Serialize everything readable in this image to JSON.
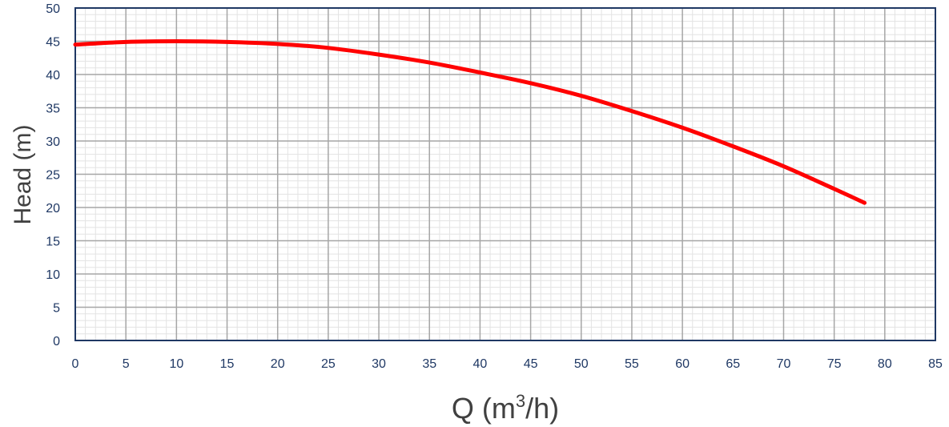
{
  "colors": {
    "curve": "#ff0000",
    "plot_border": "#1f3864",
    "tick_text": "#1f3864",
    "major_grid": "#a6a6a6",
    "minor_grid": "#e3e3e3"
  },
  "chart_data": {
    "type": "line",
    "title": "",
    "xlabel": "Q (m",
    "xlabel_sup": "3",
    "xlabel_end": "/h)",
    "ylabel": "Head (m)",
    "xlim": [
      0,
      85
    ],
    "ylim": [
      0,
      50
    ],
    "x_ticks": [
      "0",
      "5",
      "10",
      "15",
      "20",
      "25",
      "30",
      "35",
      "40",
      "45",
      "50",
      "55",
      "60",
      "65",
      "70",
      "75",
      "80",
      "85"
    ],
    "y_ticks": [
      "0",
      "5",
      "10",
      "15",
      "20",
      "25",
      "30",
      "35",
      "40",
      "45",
      "50"
    ],
    "grid": true,
    "minor_grid": true,
    "legend": "none",
    "series": [
      {
        "x": [
          0,
          5,
          10,
          15,
          20,
          25,
          30,
          35,
          40,
          45,
          50,
          55,
          60,
          65,
          70,
          75,
          78
        ],
        "y": [
          44.5,
          44.9,
          45.0,
          44.9,
          44.6,
          44.0,
          43.0,
          41.8,
          40.3,
          38.7,
          36.8,
          34.5,
          32.0,
          29.2,
          26.2,
          22.8,
          20.7
        ]
      }
    ]
  }
}
